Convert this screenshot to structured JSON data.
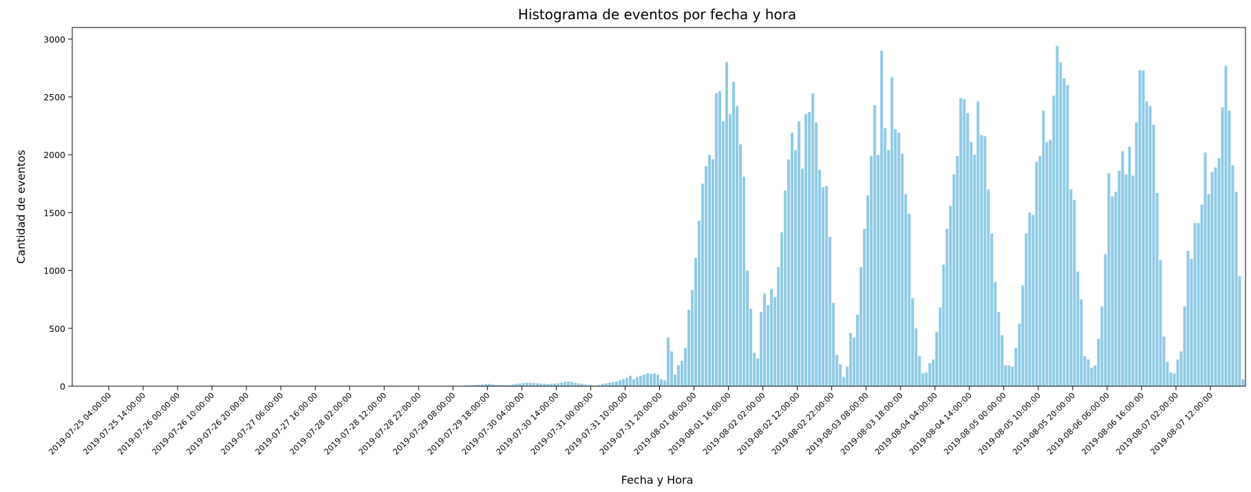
{
  "chart_data": {
    "type": "bar",
    "title": "Histograma de eventos por fecha y hora",
    "xlabel": "Fecha y Hora",
    "ylabel": "Cantidad de eventos",
    "ylim": [
      0,
      3100
    ],
    "yticks": [
      0,
      500,
      1000,
      1500,
      2000,
      2500,
      3000
    ],
    "bar_color": "#8ecae6",
    "start": "2019-07-25 00:00:00",
    "interval_hours": 1,
    "xticks": [
      "2019-07-25 04:00:00",
      "2019-07-25 14:00:00",
      "2019-07-26 00:00:00",
      "2019-07-26 10:00:00",
      "2019-07-26 20:00:00",
      "2019-07-27 06:00:00",
      "2019-07-27 16:00:00",
      "2019-07-28 02:00:00",
      "2019-07-28 12:00:00",
      "2019-07-28 22:00:00",
      "2019-07-29 08:00:00",
      "2019-07-29 18:00:00",
      "2019-07-30 04:00:00",
      "2019-07-30 14:00:00",
      "2019-07-31 00:00:00",
      "2019-07-31 10:00:00",
      "2019-07-31 20:00:00",
      "2019-08-01 06:00:00",
      "2019-08-01 16:00:00",
      "2019-08-02 02:00:00",
      "2019-08-02 12:00:00",
      "2019-08-02 22:00:00",
      "2019-08-03 08:00:00",
      "2019-08-03 18:00:00",
      "2019-08-04 04:00:00",
      "2019-08-04 14:00:00",
      "2019-08-05 00:00:00",
      "2019-08-05 10:00:00",
      "2019-08-05 20:00:00",
      "2019-08-06 06:00:00",
      "2019-08-06 16:00:00",
      "2019-08-07 02:00:00",
      "2019-08-07 12:00:00"
    ],
    "values": [
      0,
      0,
      0,
      0,
      0,
      0,
      0,
      0,
      0,
      0,
      0,
      0,
      0,
      0,
      0,
      0,
      0,
      0,
      0,
      0,
      0,
      0,
      0,
      0,
      0,
      0,
      0,
      0,
      0,
      0,
      0,
      0,
      0,
      0,
      0,
      0,
      0,
      0,
      0,
      0,
      0,
      0,
      0,
      0,
      0,
      0,
      0,
      0,
      0,
      0,
      0,
      0,
      0,
      3,
      3,
      3,
      3,
      3,
      3,
      3,
      3,
      3,
      3,
      3,
      3,
      3,
      3,
      3,
      3,
      3,
      3,
      3,
      0,
      0,
      0,
      0,
      0,
      0,
      0,
      0,
      3,
      3,
      3,
      3,
      3,
      5,
      5,
      3,
      3,
      3,
      3,
      3,
      3,
      3,
      3,
      3,
      3,
      3,
      3,
      3,
      3,
      3,
      3,
      3,
      3,
      3,
      3,
      5,
      6,
      8,
      10,
      12,
      15,
      18,
      20,
      15,
      12,
      10,
      10,
      10,
      10,
      15,
      20,
      25,
      28,
      30,
      30,
      28,
      25,
      22,
      20,
      18,
      20,
      22,
      25,
      30,
      38,
      40,
      38,
      30,
      25,
      20,
      15,
      10,
      5,
      5,
      10,
      20,
      25,
      30,
      35,
      40,
      50,
      60,
      70,
      90,
      60,
      80,
      90,
      100,
      110,
      105,
      110,
      100,
      60,
      50,
      420,
      300,
      100,
      180,
      220,
      330,
      660,
      830,
      1110,
      1430,
      1750,
      1900,
      2000,
      1960,
      2530,
      2550,
      2290,
      2800,
      2350,
      2630,
      2420,
      2090,
      1810,
      1000,
      670,
      290,
      240,
      640,
      800,
      700,
      840,
      770,
      1030,
      1330,
      1690,
      1960,
      2190,
      2040,
      2290,
      1880,
      2350,
      2370,
      2530,
      2280,
      1870,
      1720,
      1730,
      1290,
      720,
      270,
      190,
      80,
      170,
      460,
      420,
      620,
      1030,
      1360,
      1650,
      1990,
      2430,
      2000,
      2900,
      2230,
      2040,
      2670,
      2220,
      2190,
      2010,
      1660,
      1490,
      760,
      500,
      260,
      110,
      120,
      200,
      230,
      470,
      680,
      1050,
      1360,
      1560,
      1830,
      1990,
      2490,
      2480,
      2360,
      2110,
      2000,
      2460,
      2170,
      2160,
      1700,
      1320,
      900,
      640,
      440,
      180,
      180,
      170,
      330,
      540,
      870,
      1320,
      1500,
      1480,
      1940,
      1990,
      2380,
      2110,
      2130,
      2510,
      2940,
      2800,
      2660,
      2600,
      1700,
      1610,
      990,
      750,
      260,
      230,
      160,
      180,
      410,
      690,
      1140,
      1840,
      1640,
      1680,
      1860,
      2030,
      1830,
      2070,
      1820,
      2280,
      2730,
      2730,
      2460,
      2420,
      2260,
      1670,
      1090,
      430,
      210,
      120,
      110,
      230,
      300,
      690,
      1170,
      1100,
      1410,
      1410,
      1570,
      2020,
      1660,
      1850,
      1890,
      1970,
      2410,
      2770,
      2380,
      1910,
      1680,
      950,
      60
    ]
  }
}
